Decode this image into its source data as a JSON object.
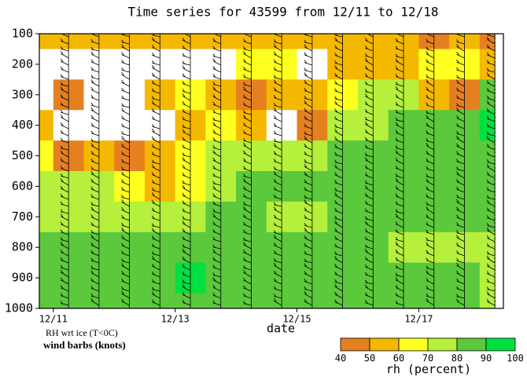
{
  "chart_data": {
    "type": "contour",
    "title": "Time series for 43599 from 12/11 to 12/18",
    "xlabel": "date",
    "annotations": [
      "RH wrt ice (T<0C)",
      "wind barbs (knots)"
    ],
    "xlim": [
      10.77,
      18.39
    ],
    "xticks": [
      {
        "value": 11,
        "label": "12/11"
      },
      {
        "value": 13,
        "label": "12/13"
      },
      {
        "value": 15,
        "label": "12/15"
      },
      {
        "value": 17,
        "label": "12/17"
      }
    ],
    "ylim": [
      100,
      1000
    ],
    "y_inverted": true,
    "yticks": [
      100,
      200,
      300,
      400,
      500,
      600,
      700,
      800,
      900,
      1000
    ],
    "times": [
      10.75,
      11.25,
      11.75,
      12.25,
      12.75,
      13.25,
      13.75,
      14.25,
      14.75,
      15.25,
      15.75,
      16.25,
      16.75,
      17.25,
      17.75,
      18.25
    ],
    "levels": [
      100,
      200,
      300,
      400,
      500,
      600,
      700,
      800,
      900,
      1000
    ],
    "rh": [
      [
        50,
        20,
        20,
        55,
        65,
        75,
        75,
        80,
        80,
        80
      ],
      [
        55,
        20,
        45,
        20,
        45,
        75,
        75,
        85,
        85,
        80
      ],
      [
        55,
        20,
        20,
        20,
        50,
        70,
        75,
        85,
        85,
        80
      ],
      [
        55,
        20,
        20,
        20,
        45,
        60,
        75,
        85,
        80,
        80
      ],
      [
        55,
        20,
        50,
        20,
        50,
        55,
        70,
        80,
        85,
        80
      ],
      [
        55,
        20,
        60,
        50,
        60,
        65,
        75,
        85,
        90,
        85
      ],
      [
        50,
        20,
        55,
        65,
        75,
        75,
        80,
        85,
        85,
        85
      ],
      [
        55,
        60,
        45,
        55,
        75,
        80,
        80,
        80,
        85,
        85
      ],
      [
        50,
        60,
        50,
        20,
        70,
        80,
        75,
        80,
        85,
        85
      ],
      [
        55,
        30,
        55,
        45,
        75,
        80,
        75,
        80,
        85,
        85
      ],
      [
        50,
        55,
        65,
        70,
        80,
        85,
        80,
        85,
        85,
        80
      ],
      [
        55,
        50,
        75,
        75,
        80,
        85,
        80,
        85,
        80,
        80
      ],
      [
        50,
        55,
        75,
        80,
        85,
        85,
        80,
        75,
        80,
        80
      ],
      [
        45,
        65,
        50,
        80,
        85,
        80,
        80,
        70,
        80,
        80
      ],
      [
        50,
        60,
        45,
        80,
        85,
        80,
        80,
        75,
        80,
        80
      ],
      [
        45,
        50,
        80,
        90,
        85,
        85,
        80,
        75,
        75,
        75
      ]
    ],
    "colorbar": {
      "label": "rh (percent)",
      "ticks": [
        40,
        50,
        60,
        70,
        80,
        90,
        100
      ],
      "colors": [
        "#e58020",
        "#f5b800",
        "#ffff20",
        "#b4f03c",
        "#5cc83c",
        "#00e040"
      ]
    }
  }
}
